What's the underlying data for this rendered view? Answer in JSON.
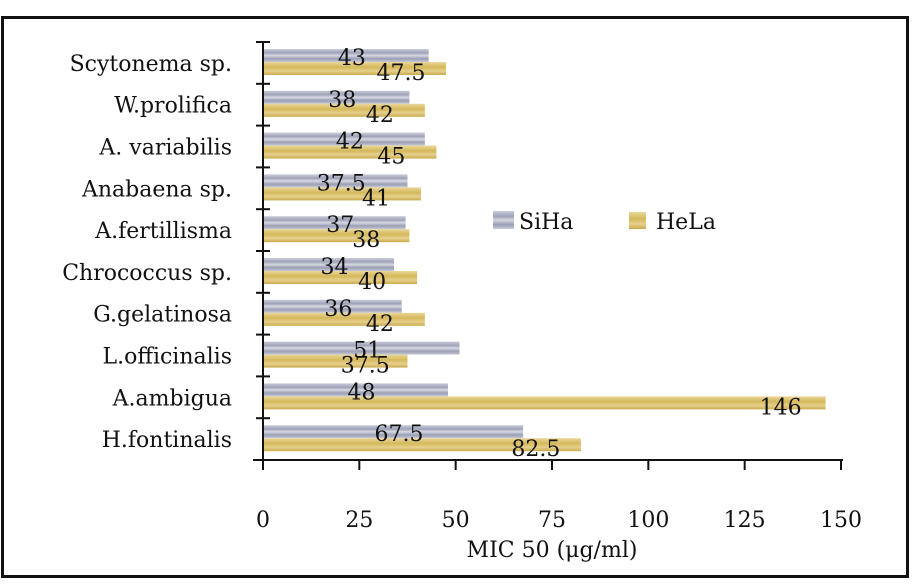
{
  "chart_data": {
    "type": "bar",
    "orientation": "horizontal",
    "title": "",
    "xlabel": "MIC 50 (μg/ml)",
    "ylabel": "",
    "xlim": [
      0,
      150
    ],
    "xticks": [
      "0",
      "25",
      "50",
      "75",
      "100",
      "125",
      "150"
    ],
    "grid": false,
    "legend_position": "center-right",
    "categories": [
      "Scytonema sp.",
      "W.prolifica",
      "A. variabilis",
      "Anabaena sp.",
      "A.fertillisma",
      "Chrococcus sp.",
      "G.gelatinosa",
      "L.officinalis",
      "A.ambigua",
      "H.fontinalis"
    ],
    "series": [
      {
        "name": "SiHa",
        "color": "#a9adc0",
        "values": [
          43,
          38,
          42,
          37.5,
          37,
          34,
          36,
          51,
          48,
          67.5
        ],
        "labels": [
          "43",
          "38",
          "42",
          "37.5",
          "37",
          "34",
          "36",
          "51",
          "48",
          "67.5"
        ]
      },
      {
        "name": "HeLa",
        "color": "#d8c06a",
        "values": [
          47.5,
          42,
          45,
          41,
          38,
          40,
          42,
          37.5,
          146,
          82.5
        ],
        "labels": [
          "47.5",
          "42",
          "45",
          "41",
          "38",
          "40",
          "42",
          "37.5",
          "146",
          "82.5"
        ]
      }
    ]
  }
}
